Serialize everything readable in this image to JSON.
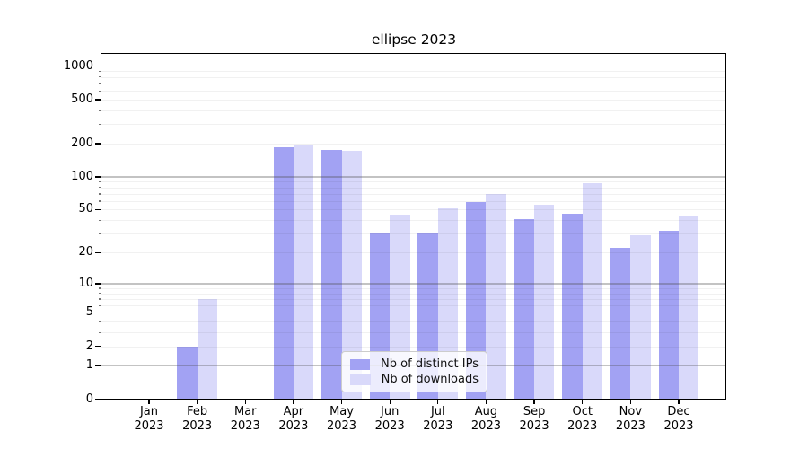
{
  "chart_data": {
    "type": "bar",
    "title": "ellipse 2023",
    "categories": [
      "Jan 2023",
      "Feb 2023",
      "Mar 2023",
      "Apr 2023",
      "May 2023",
      "Jun 2023",
      "Jul 2023",
      "Aug 2023",
      "Sep 2023",
      "Oct 2023",
      "Nov 2023",
      "Dec 2023"
    ],
    "series": [
      {
        "name": "Nb of distinct IPs",
        "color": "#a2a2f3",
        "values": [
          0,
          2,
          0,
          185,
          175,
          30,
          31,
          59,
          41,
          46,
          22,
          32
        ]
      },
      {
        "name": "Nb of downloads",
        "color": "#d9d9fa",
        "values": [
          0,
          7,
          0,
          193,
          173,
          45,
          51,
          70,
          55,
          88,
          29,
          44
        ]
      }
    ],
    "xlabel": "",
    "ylabel": "",
    "yscale": "log1p",
    "yticks": [
      0,
      1,
      2,
      5,
      10,
      20,
      50,
      100,
      200,
      500,
      1000
    ],
    "ylim": [
      0,
      1400
    ],
    "grid": "both",
    "legend_position": "lower center"
  }
}
